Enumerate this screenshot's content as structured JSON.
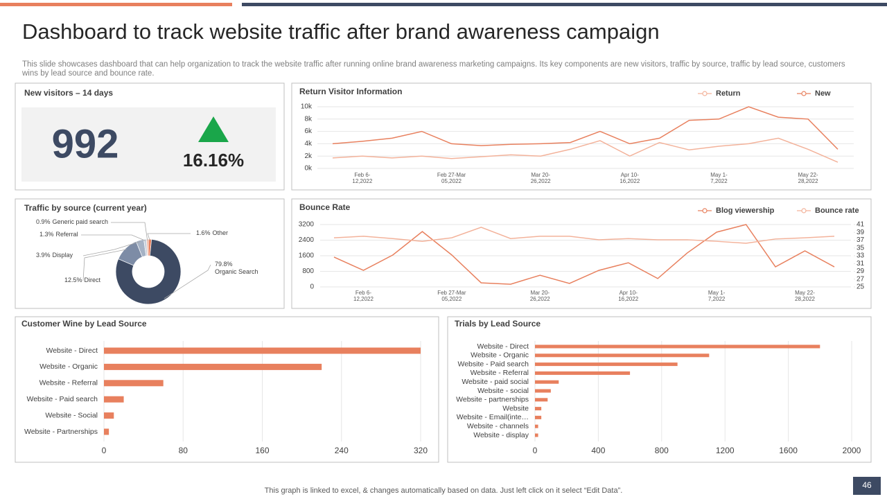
{
  "title": "Dashboard to track website traffic after brand awareness campaign",
  "description": "This slide showcases dashboard that can help organization to track the website traffic after running online brand awareness marketing campaigns. Its key components are new visitors, traffic by source, traffic by lead source, customers wins by lead source and bounce rate.",
  "kpi": {
    "title": "New visitors – 14 days",
    "value": 992,
    "change": "16.16%"
  },
  "footer": "This graph is linked to excel, & changes automatically based on data. Just left click on it select “Edit Data”.",
  "page_number": 46,
  "chart_data": [
    {
      "type": "line",
      "title": "Return Visitor Information",
      "categories": [
        null,
        "Feb 6-\n12,2022",
        null,
        null,
        "Feb 27-Mar\n05,2022",
        null,
        null,
        "Mar 20-\n26,2022",
        null,
        null,
        "Apr 10-\n16,2022",
        null,
        null,
        "May 1-\n7,2022",
        null,
        null,
        "May 22-\n28,2022",
        null
      ],
      "series": [
        {
          "name": "Return",
          "color": "#f3b29a",
          "values": [
            1700,
            2000,
            1700,
            2000,
            1600,
            1900,
            2200,
            2000,
            3100,
            4500,
            2000,
            4200,
            3000,
            3600,
            4000,
            4900,
            3100,
            1000
          ]
        },
        {
          "name": "New",
          "color": "#e8805e",
          "values": [
            4000,
            4400,
            4900,
            6000,
            4000,
            3700,
            3900,
            4000,
            4200,
            6000,
            4000,
            4900,
            7800,
            8000,
            10000,
            8300,
            8000,
            3100
          ]
        }
      ],
      "ylim": [
        0,
        10000
      ],
      "yticks": [
        {
          "value": 0,
          "label": "0k"
        },
        {
          "value": 2000,
          "label": "2k"
        },
        {
          "value": 4000,
          "label": "4k"
        },
        {
          "value": 6000,
          "label": "6k"
        },
        {
          "value": 8000,
          "label": "8k"
        },
        {
          "value": 10000,
          "label": "10k"
        }
      ],
      "grid": true,
      "legend": "top-right"
    },
    {
      "type": "line",
      "title": "Bounce Rate",
      "categories": [
        null,
        "Feb 6-\n12,2022",
        null,
        null,
        "Feb 27-Mar\n05,2022",
        null,
        null,
        "Mar 20-\n26,2022",
        null,
        null,
        "Apr 10-\n16,2022",
        null,
        null,
        "May 1-\n7,2022",
        null,
        null,
        "May 22-\n28,2022",
        null
      ],
      "series": [
        {
          "name": "Blog viewership",
          "color": "#e8805e",
          "values": [
            1530,
            850,
            1640,
            2840,
            1640,
            210,
            140,
            600,
            180,
            850,
            1240,
            430,
            1740,
            2810,
            3200,
            1030,
            1850,
            1030
          ]
        },
        {
          "name": "Bounce rate",
          "color": "#f3b29a",
          "axis": "y2",
          "values": [
            37.6,
            38.0,
            37.4,
            36.7,
            37.6,
            40.3,
            37.4,
            38.0,
            38.0,
            37.1,
            37.4,
            37.1,
            37.1,
            36.7,
            36.2,
            37.3,
            37.6,
            38.0
          ]
        }
      ],
      "ylim": [
        0,
        3200
      ],
      "yticks": [
        0,
        800,
        1600,
        2400,
        3200
      ],
      "y2lim": [
        25,
        41
      ],
      "y2ticks": [
        25,
        27,
        29,
        31,
        33,
        35,
        37,
        39,
        41
      ],
      "grid": true,
      "legend": "top-right"
    },
    {
      "type": "pie",
      "title": "Traffic by source (current year)",
      "donut": true,
      "categories": [
        "Other",
        "Organic Search",
        "Direct",
        "Display",
        "Referral",
        "Generic paid search"
      ],
      "values": [
        1.6,
        79.8,
        12.5,
        3.9,
        1.3,
        0.9
      ],
      "value_labels": [
        "1.6%",
        "79.8%",
        "12.5%",
        "3.9%",
        "1.3%",
        "0.9%"
      ],
      "colors": [
        "#e8805e",
        "#3d4a63",
        "#7d8ca6",
        "#a5b2c5",
        "#c6cfdc",
        "#edb9a6"
      ]
    },
    {
      "type": "bar",
      "orientation": "horizontal",
      "title": "Customer Wine by Lead Source",
      "categories": [
        "Website - Direct",
        "Website - Organic",
        "Website - Referral",
        "Website - Paid search",
        "Website - Social",
        "Website - Partnerships"
      ],
      "values": [
        320,
        220,
        60,
        20,
        10,
        5
      ],
      "color": "#e8805e",
      "xlim": [
        0,
        320
      ],
      "xticks": [
        0,
        80,
        160,
        240,
        320
      ],
      "grid": true
    },
    {
      "type": "bar",
      "orientation": "horizontal",
      "title": "Trials by Lead Source",
      "categories": [
        "Website - Direct",
        "Website - Organic",
        "Website - Paid search",
        "Website - Referral",
        "Website - paid social",
        "Website - social",
        "Website - partnerships",
        "Website",
        "Website - Email(inte…",
        "Website - channels",
        "Website - display"
      ],
      "values": [
        1800,
        1100,
        900,
        600,
        150,
        100,
        80,
        40,
        40,
        20,
        20
      ],
      "color": "#e8805e",
      "xlim": [
        0,
        2000
      ],
      "xticks": [
        0,
        400,
        800,
        1200,
        1600,
        2000
      ],
      "grid": true
    }
  ]
}
